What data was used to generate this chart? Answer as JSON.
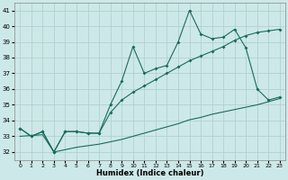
{
  "bg_color": "#cde8e8",
  "line_color": "#1a6b5a",
  "grid_color": "#aacece",
  "xlabel": "Humidex (Indice chaleur)",
  "xlim": [
    -0.5,
    23.5
  ],
  "ylim": [
    31.5,
    41.5
  ],
  "xticks": [
    0,
    1,
    2,
    3,
    4,
    5,
    6,
    7,
    8,
    9,
    10,
    11,
    12,
    13,
    14,
    15,
    16,
    17,
    18,
    19,
    20,
    21,
    22,
    23
  ],
  "yticks": [
    32,
    33,
    34,
    35,
    36,
    37,
    38,
    39,
    40,
    41
  ],
  "line_jagged": [
    33.5,
    33.0,
    33.3,
    32.0,
    33.3,
    33.3,
    33.2,
    33.2,
    35.0,
    36.5,
    38.7,
    37.0,
    37.3,
    37.5,
    39.0,
    41.0,
    39.5,
    39.2,
    39.3,
    39.8,
    38.6,
    36.0,
    35.3,
    35.5
  ],
  "line_upper": [
    33.5,
    33.0,
    33.3,
    32.0,
    33.3,
    33.3,
    33.2,
    33.2,
    34.5,
    35.3,
    35.8,
    36.2,
    36.6,
    37.0,
    37.4,
    37.8,
    38.1,
    38.4,
    38.7,
    39.1,
    39.4,
    39.6,
    39.7,
    39.8
  ],
  "line_lower": [
    33.0,
    33.05,
    33.1,
    32.0,
    32.15,
    32.3,
    32.4,
    32.5,
    32.65,
    32.8,
    33.0,
    33.2,
    33.4,
    33.6,
    33.8,
    34.05,
    34.2,
    34.4,
    34.55,
    34.7,
    34.85,
    35.0,
    35.2,
    35.4
  ]
}
